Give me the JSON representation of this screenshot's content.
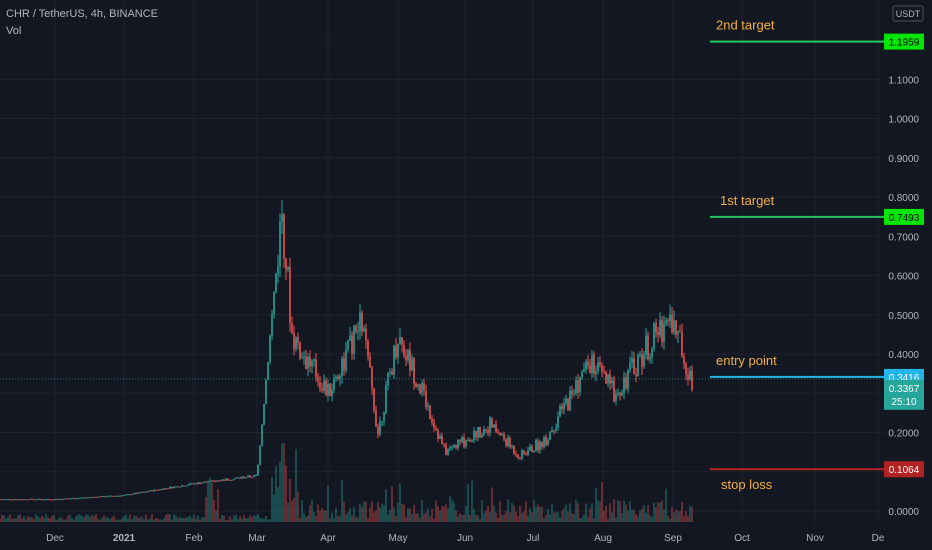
{
  "header": {
    "symbol_line": "CHR / TetherUS, 4h, BINANCE",
    "volume_label": "Vol"
  },
  "currency_badge": "USDT",
  "colors": {
    "background": "#131722",
    "grid": "#1e222d",
    "axis_text": "#b2b5be",
    "up": "#26a69a",
    "down": "#ef5350",
    "target_line": "#22c55e",
    "target_tag": "#00e600",
    "entry_line": "#22b5e8",
    "stop_line": "#b22222",
    "annotation_text": "#f5b041",
    "price_tag": "#26a69a"
  },
  "chart_data": {
    "type": "candlestick",
    "price_axis": {
      "ticks": [
        "0.0000",
        "0.1000",
        "0.2000",
        "0.3000",
        "0.4000",
        "0.5000",
        "0.6000",
        "0.7000",
        "0.8000",
        "0.9000",
        "1.0000",
        "1.1000",
        "1.2000"
      ],
      "range": [
        -0.02,
        1.28
      ]
    },
    "time_axis": {
      "ticks": [
        "Dec",
        "2021",
        "Feb",
        "Mar",
        "Apr",
        "May",
        "Jun",
        "Jul",
        "Aug",
        "Sep",
        "Oct",
        "Nov",
        "De"
      ]
    },
    "price_series": [
      [
        "Nov 2020",
        0.03
      ],
      [
        "Dec",
        0.03
      ],
      [
        "2021",
        0.04
      ],
      [
        "Feb",
        0.07
      ],
      [
        "Mar",
        0.09
      ],
      [
        "Mar peak",
        0.77
      ],
      [
        "Mar late",
        0.45
      ],
      [
        "Apr",
        0.3
      ],
      [
        "Apr mid",
        0.48
      ],
      [
        "Apr late",
        0.2
      ],
      [
        "May",
        0.45
      ],
      [
        "May mid",
        0.32
      ],
      [
        "Jun",
        0.15
      ],
      [
        "Jun mid",
        0.22
      ],
      [
        "Jul",
        0.14
      ],
      [
        "Jul mid",
        0.18
      ],
      [
        "Aug",
        0.38
      ],
      [
        "Aug mid",
        0.3
      ],
      [
        "Sep",
        0.5
      ],
      [
        "Sep latest",
        0.3367
      ]
    ],
    "levels": [
      {
        "label": "2nd target",
        "price": 1.1959,
        "tag": "1.1959"
      },
      {
        "label": "1st target",
        "price": 0.7493,
        "tag": "0.7493"
      },
      {
        "label": "entry point",
        "price": 0.3416,
        "tag": "0.3416"
      },
      {
        "label": "stop loss",
        "price": 0.1064,
        "tag": "0.1064"
      }
    ],
    "last_price": {
      "value": "0.3367",
      "countdown": "25:10"
    }
  }
}
